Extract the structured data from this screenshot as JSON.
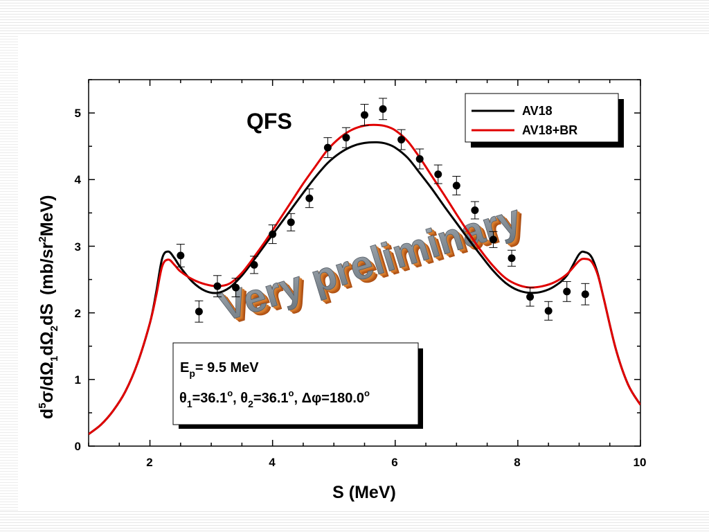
{
  "chart_data": {
    "type": "line",
    "title": "QFS",
    "xlabel": "S (MeV)",
    "ylabel": {
      "d": "d",
      "sup5": "5",
      "sigma": "σ/dΩ",
      "sub1": "1",
      "dOmega2": "dΩ",
      "sub2": "2",
      "dS": "dS",
      "unit_open": "(mb/sr",
      "sup2": "2",
      "unit_close": "MeV)"
    },
    "xlim": [
      1,
      10
    ],
    "ylim": [
      0,
      5.5
    ],
    "x_ticks": [
      "2",
      "4",
      "6",
      "8",
      "10"
    ],
    "y_ticks": [
      "0",
      "1",
      "2",
      "3",
      "4",
      "5"
    ],
    "grid": false,
    "legend_position": "top-right",
    "legend": [
      "AV18",
      "AV18+BR"
    ],
    "series": [
      {
        "name": "AV18",
        "color": "#000000",
        "x": [
          1.0,
          1.2,
          1.4,
          1.6,
          1.8,
          2.0,
          2.1,
          2.2,
          2.3,
          2.4,
          2.5,
          2.7,
          2.9,
          3.1,
          3.3,
          3.5,
          3.7,
          3.9,
          4.1,
          4.3,
          4.5,
          4.7,
          4.9,
          5.1,
          5.3,
          5.5,
          5.7,
          5.85,
          6.0,
          6.2,
          6.4,
          6.6,
          6.8,
          7.0,
          7.2,
          7.4,
          7.6,
          7.8,
          8.0,
          8.2,
          8.4,
          8.6,
          8.8,
          9.0,
          9.1,
          9.2,
          9.3,
          9.4,
          9.6,
          9.8,
          10.0
        ],
        "y": [
          0.18,
          0.32,
          0.53,
          0.82,
          1.25,
          1.85,
          2.3,
          2.82,
          2.92,
          2.82,
          2.68,
          2.46,
          2.33,
          2.3,
          2.38,
          2.56,
          2.8,
          3.05,
          3.3,
          3.55,
          3.8,
          4.04,
          4.25,
          4.4,
          4.5,
          4.55,
          4.56,
          4.54,
          4.48,
          4.33,
          4.1,
          3.86,
          3.6,
          3.35,
          3.1,
          2.86,
          2.63,
          2.45,
          2.34,
          2.3,
          2.32,
          2.4,
          2.56,
          2.88,
          2.91,
          2.84,
          2.6,
          2.22,
          1.45,
          0.92,
          0.62
        ]
      },
      {
        "name": "AV18+BR",
        "color": "#e00000",
        "x": [
          1.0,
          1.2,
          1.4,
          1.6,
          1.8,
          2.0,
          2.1,
          2.2,
          2.3,
          2.4,
          2.5,
          2.7,
          2.9,
          3.1,
          3.3,
          3.5,
          3.7,
          3.9,
          4.1,
          4.3,
          4.5,
          4.7,
          4.9,
          5.1,
          5.3,
          5.5,
          5.7,
          5.85,
          6.0,
          6.2,
          6.4,
          6.6,
          6.8,
          7.0,
          7.2,
          7.4,
          7.6,
          7.8,
          8.0,
          8.2,
          8.4,
          8.6,
          8.8,
          9.0,
          9.1,
          9.2,
          9.3,
          9.4,
          9.6,
          9.8,
          10.0
        ],
        "y": [
          0.18,
          0.32,
          0.53,
          0.82,
          1.25,
          1.85,
          2.25,
          2.7,
          2.8,
          2.72,
          2.62,
          2.5,
          2.43,
          2.4,
          2.44,
          2.6,
          2.84,
          3.1,
          3.38,
          3.66,
          3.94,
          4.2,
          4.45,
          4.63,
          4.75,
          4.81,
          4.82,
          4.8,
          4.74,
          4.58,
          4.33,
          4.05,
          3.77,
          3.48,
          3.2,
          2.93,
          2.7,
          2.52,
          2.42,
          2.38,
          2.4,
          2.46,
          2.58,
          2.78,
          2.81,
          2.77,
          2.58,
          2.22,
          1.45,
          0.92,
          0.62
        ]
      },
      {
        "name": "data",
        "color": "#000000",
        "x": [
          2.5,
          2.8,
          3.1,
          3.4,
          3.7,
          4.0,
          4.3,
          4.6,
          4.9,
          5.2,
          5.5,
          5.8,
          6.1,
          6.4,
          6.7,
          7.0,
          7.3,
          7.6,
          7.9,
          8.2,
          8.5,
          8.8,
          9.1
        ],
        "y": [
          2.86,
          2.02,
          2.4,
          2.38,
          2.72,
          3.18,
          3.36,
          3.72,
          4.48,
          4.63,
          4.97,
          5.06,
          4.6,
          4.31,
          4.08,
          3.91,
          3.54,
          3.1,
          2.82,
          2.24,
          2.03,
          2.32,
          2.28
        ],
        "yerr": [
          0.17,
          0.16,
          0.16,
          0.14,
          0.13,
          0.14,
          0.13,
          0.14,
          0.15,
          0.15,
          0.16,
          0.16,
          0.15,
          0.15,
          0.14,
          0.14,
          0.13,
          0.12,
          0.12,
          0.14,
          0.14,
          0.15,
          0.16
        ]
      }
    ],
    "annotations": {
      "ep_sym": "E",
      "ep_sub": "p",
      "ep_val": "= 9.5 MeV",
      "th1_sym": "θ",
      "th1_sub": "1",
      "th1_val": "=36.1",
      "deg": "o",
      "sep1": ", ",
      "th2_sym": "θ",
      "th2_sub": "2",
      "th2_val": "=36.1",
      "sep2": ", ",
      "dphi": "Δφ=180.0",
      "watermark": "Very preliminary"
    }
  }
}
